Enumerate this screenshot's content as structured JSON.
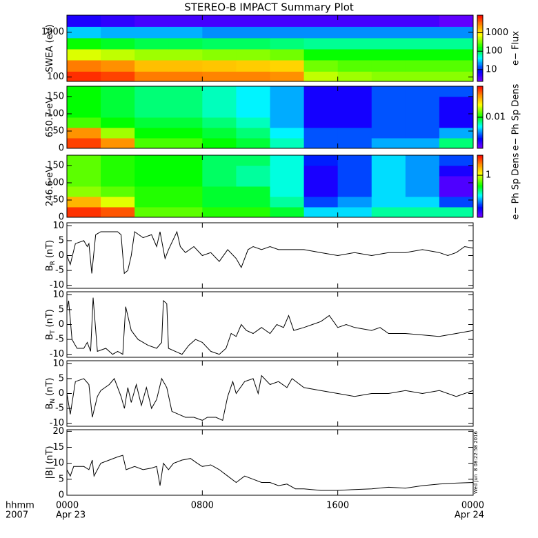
{
  "title": "STEREO-B IMPACT Summary Plot",
  "x_axis": {
    "name": [
      "hhmm",
      "2007"
    ],
    "xlim": [
      0,
      24
    ],
    "ticks": [
      {
        "value": 0,
        "label": "0000",
        "date": "Apr 23"
      },
      {
        "value": 8,
        "label": "0800"
      },
      {
        "value": 16,
        "label": "1600"
      },
      {
        "value": 24,
        "label": "0000",
        "date": "Apr 24"
      }
    ]
  },
  "timestamp": "Wed Jun  8 08:22:58 2016",
  "chart_data": [
    {
      "type": "heatmap",
      "ylabel": "SWEA (eV)",
      "clabel": "e− Flux",
      "log": true,
      "clog": true,
      "x": [
        1,
        3,
        5,
        7,
        9,
        11,
        13,
        15,
        17,
        19,
        21,
        23
      ],
      "xlim": [
        0,
        24
      ],
      "y": [
        100,
        180,
        320,
        560,
        1000,
        1800
      ],
      "ylim": [
        80,
        2400
      ],
      "yticks": [
        100,
        1000
      ],
      "clim": [
        2.3,
        9000
      ],
      "cticks": [
        10,
        100,
        1000
      ],
      "z": [
        [
          6000,
          5000,
          3000,
          3000,
          2800,
          2800,
          2500,
          500,
          400,
          350,
          350,
          350
        ],
        [
          3000,
          2500,
          1500,
          1500,
          1400,
          1300,
          1200,
          300,
          250,
          250,
          250,
          250
        ],
        [
          600,
          500,
          400,
          400,
          350,
          350,
          300,
          150,
          150,
          150,
          150,
          150
        ],
        [
          150,
          120,
          100,
          100,
          90,
          90,
          80,
          70,
          70,
          70,
          70,
          70
        ],
        [
          30,
          25,
          25,
          25,
          20,
          20,
          20,
          20,
          20,
          20,
          20,
          20
        ],
        [
          6,
          5,
          4,
          4,
          4,
          4,
          4,
          4,
          4,
          4,
          4,
          3
        ]
      ]
    },
    {
      "type": "heatmap",
      "ylabel": "650.7 eV",
      "clabel": "e− Ph Sp Dens",
      "log": false,
      "clog": true,
      "x": [
        1,
        3,
        5,
        7,
        9,
        11,
        13,
        15,
        17,
        19,
        21,
        23
      ],
      "xlim": [
        0,
        24
      ],
      "y": [
        15,
        45,
        75,
        105,
        135,
        165
      ],
      "ylim": [
        0,
        180
      ],
      "yticks": [
        0,
        50,
        100,
        150
      ],
      "clim": [
        0.002,
        0.05
      ],
      "cticks": [
        0.01
      ],
      "z": [
        [
          0.04,
          0.03,
          0.012,
          0.012,
          0.01,
          0.009,
          0.007,
          0.004,
          0.004,
          0.005,
          0.005,
          0.008
        ],
        [
          0.03,
          0.015,
          0.01,
          0.01,
          0.009,
          0.008,
          0.006,
          0.004,
          0.004,
          0.004,
          0.004,
          0.005
        ],
        [
          0.012,
          0.01,
          0.009,
          0.009,
          0.008,
          0.007,
          0.005,
          0.003,
          0.003,
          0.004,
          0.004,
          0.003
        ],
        [
          0.01,
          0.009,
          0.008,
          0.008,
          0.007,
          0.006,
          0.005,
          0.003,
          0.003,
          0.004,
          0.004,
          0.003
        ],
        [
          0.01,
          0.009,
          0.008,
          0.008,
          0.007,
          0.006,
          0.005,
          0.003,
          0.003,
          0.004,
          0.004,
          0.003
        ],
        [
          0.01,
          0.009,
          0.008,
          0.008,
          0.007,
          0.006,
          0.005,
          0.003,
          0.003,
          0.004,
          0.004,
          0.004
        ]
      ]
    },
    {
      "type": "heatmap",
      "ylabel": "246.6 eV",
      "clabel": "e− Ph Sp Dens",
      "log": false,
      "clog": true,
      "x": [
        1,
        3,
        5,
        7,
        9,
        11,
        13,
        15,
        17,
        19,
        21,
        23
      ],
      "xlim": [
        0,
        24
      ],
      "y": [
        15,
        45,
        75,
        105,
        135,
        165
      ],
      "ylim": [
        0,
        180
      ],
      "yticks": [
        0,
        50,
        100,
        150
      ],
      "clim": [
        0.1,
        3
      ],
      "cticks": [
        1
      ],
      "z": [
        [
          2.5,
          2.2,
          0.7,
          0.7,
          0.6,
          0.6,
          0.5,
          0.3,
          0.3,
          0.4,
          0.4,
          0.4
        ],
        [
          1.5,
          1,
          0.6,
          0.6,
          0.5,
          0.5,
          0.4,
          0.2,
          0.25,
          0.3,
          0.3,
          0.2
        ],
        [
          0.8,
          0.7,
          0.6,
          0.6,
          0.5,
          0.5,
          0.35,
          0.15,
          0.2,
          0.3,
          0.25,
          0.12
        ],
        [
          0.7,
          0.6,
          0.55,
          0.55,
          0.45,
          0.4,
          0.35,
          0.15,
          0.2,
          0.3,
          0.25,
          0.12
        ],
        [
          0.7,
          0.6,
          0.55,
          0.55,
          0.45,
          0.4,
          0.35,
          0.15,
          0.2,
          0.3,
          0.25,
          0.15
        ],
        [
          0.7,
          0.6,
          0.55,
          0.55,
          0.45,
          0.45,
          0.35,
          0.18,
          0.2,
          0.3,
          0.25,
          0.2
        ]
      ]
    },
    {
      "type": "line",
      "ylabel": "B",
      "ylabel_sub": "R",
      "ylabel_unit": "(nT)",
      "color": "#000000",
      "xlim": [
        0,
        24
      ],
      "ylim": [
        -11,
        11
      ],
      "yticks": [
        -10,
        -5,
        0,
        5,
        10
      ],
      "x": [
        0,
        0.2,
        0.5,
        1,
        1.2,
        1.3,
        1.47,
        1.7,
        2,
        2.5,
        3,
        3.2,
        3.39,
        3.6,
        3.8,
        4,
        4.5,
        5,
        5.3,
        5.5,
        5.8,
        6,
        6.5,
        6.7,
        7,
        7.5,
        8,
        8.5,
        9,
        9.5,
        10,
        10.3,
        10.7,
        11,
        11.5,
        12,
        12.5,
        13,
        14,
        15,
        16,
        17,
        18,
        19,
        20,
        21,
        22,
        22.5,
        23,
        23.5,
        24
      ],
      "values": [
        0,
        -3,
        4,
        5,
        3,
        4,
        -6,
        7,
        8,
        8,
        8,
        7,
        -6,
        -5,
        0,
        8,
        6,
        7,
        3,
        8,
        -1,
        2,
        8,
        3,
        1,
        3,
        0,
        1,
        -2,
        2,
        -1,
        -4,
        2,
        3,
        2,
        3,
        2,
        2,
        2,
        1,
        0,
        1,
        0,
        1,
        1,
        2,
        1,
        0,
        1,
        3,
        2.5
      ]
    },
    {
      "type": "line",
      "ylabel": "B",
      "ylabel_sub": "T",
      "ylabel_unit": "(nT)",
      "color": "#000000",
      "xlim": [
        0,
        24
      ],
      "ylim": [
        -11,
        11
      ],
      "yticks": [
        -10,
        -5,
        0,
        5,
        10
      ],
      "x": [
        0,
        0.1,
        0.3,
        0.6,
        1,
        1.2,
        1.4,
        1.55,
        1.8,
        2.3,
        2.7,
        3,
        3.3,
        3.47,
        3.8,
        4.2,
        4.8,
        5.3,
        5.6,
        5.7,
        5.9,
        6,
        6.4,
        6.8,
        7.2,
        7.6,
        8,
        8.5,
        9,
        9.4,
        9.7,
        10,
        10.3,
        10.6,
        11,
        11.5,
        12,
        12.4,
        12.8,
        13.1,
        13.4,
        14,
        14.5,
        15,
        15.5,
        16,
        16.5,
        17,
        18,
        18.5,
        19,
        20,
        21,
        22,
        23,
        24
      ],
      "values": [
        5,
        8,
        -5,
        -8,
        -8,
        -6,
        -9,
        9,
        -9,
        -8,
        -10,
        -9,
        -10,
        6,
        -2,
        -5,
        -7,
        -8,
        -6,
        8,
        7,
        -8,
        -9,
        -10,
        -7,
        -5,
        -6,
        -9,
        -10,
        -8,
        -3,
        -4,
        0,
        -2,
        -3,
        -1,
        -3,
        0,
        -1,
        3,
        -2,
        -1,
        0,
        1,
        3,
        -1,
        0,
        -1,
        -2,
        -1,
        -3,
        -3,
        -3.5,
        -4,
        -3,
        -2
      ]
    },
    {
      "type": "line",
      "ylabel": "B",
      "ylabel_sub": "N",
      "ylabel_unit": "(nT)",
      "color": "#000000",
      "xlim": [
        0,
        24
      ],
      "ylim": [
        -11,
        11
      ],
      "yticks": [
        -10,
        -5,
        0,
        5,
        10
      ],
      "x": [
        0,
        0.2,
        0.5,
        1,
        1.3,
        1.5,
        1.8,
        2,
        2.5,
        2.8,
        3.2,
        3.4,
        3.6,
        3.8,
        4.1,
        4.4,
        4.7,
        5,
        5.3,
        5.6,
        5.9,
        6.2,
        6.6,
        7,
        7.5,
        8,
        8.3,
        8.8,
        9.2,
        9.5,
        9.8,
        10,
        10.5,
        11,
        11.3,
        11.5,
        12,
        12.5,
        13,
        13.3,
        14,
        15,
        16,
        17,
        18,
        19,
        20,
        21,
        22,
        23,
        24
      ],
      "values": [
        0,
        -7,
        4,
        5,
        3,
        -8,
        -1,
        1,
        3,
        5,
        -1,
        -5,
        2,
        -3,
        3,
        -4,
        2,
        -5,
        -2,
        5,
        2,
        -6,
        -7,
        -8,
        -8,
        -9,
        -8,
        -8,
        -9,
        -1,
        4,
        0,
        4,
        5,
        0,
        6,
        3,
        4,
        2,
        5,
        2,
        1,
        0,
        -1,
        0,
        0,
        1,
        0,
        1,
        -1,
        1
      ]
    },
    {
      "type": "line",
      "ylabel": "|B| (nT)",
      "color": "#000000",
      "xlim": [
        0,
        24
      ],
      "ylim": [
        0,
        20.5
      ],
      "yticks": [
        0,
        5,
        10,
        15,
        20
      ],
      "x": [
        0,
        0.2,
        0.4,
        1,
        1.3,
        1.5,
        1.6,
        2,
        2.5,
        3,
        3.3,
        3.5,
        4,
        4.5,
        5,
        5.3,
        5.5,
        5.7,
        6,
        6.3,
        6.8,
        7.3,
        7.7,
        8,
        8.5,
        9,
        9.5,
        10,
        10.5,
        11,
        11.5,
        12,
        12.5,
        13,
        13.5,
        14,
        15,
        16,
        17,
        18,
        19,
        20,
        21,
        22,
        23,
        24
      ],
      "values": [
        8,
        6,
        9,
        9,
        8,
        11,
        6,
        10,
        11,
        12,
        12.5,
        8,
        9,
        8,
        8.5,
        9,
        3,
        10,
        8,
        10,
        11,
        11.5,
        10,
        9,
        9.5,
        8,
        6,
        4,
        6,
        5,
        4,
        4,
        3,
        3.5,
        2,
        2,
        1.5,
        1.5,
        1.8,
        2,
        2.5,
        2.2,
        3,
        3.5,
        3.8,
        4
      ]
    }
  ]
}
